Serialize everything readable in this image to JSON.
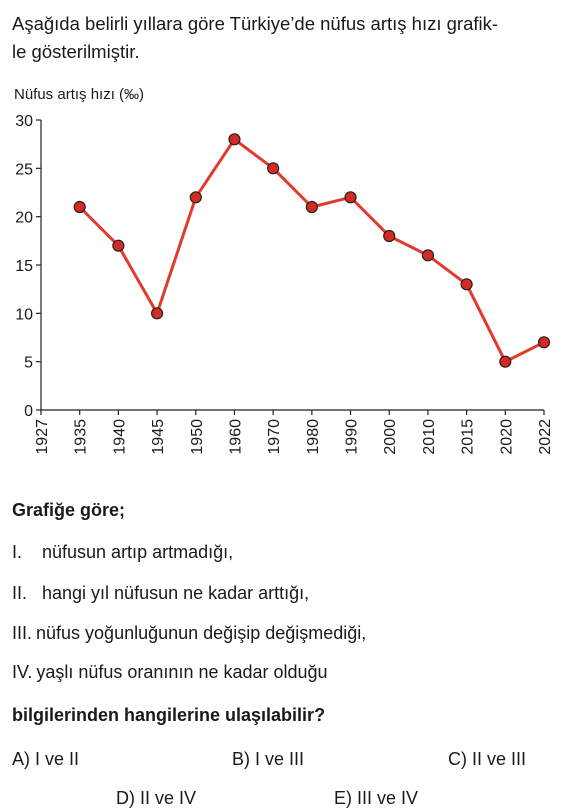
{
  "intro": "Aşağıda belirli yıllara göre Türkiye’de nüfus artış hızı grafik-le gösterilmiştir.",
  "intro_line1": "Aşağıda belirli yıllara göre Türkiye’de nüfus artış hızı grafik-",
  "intro_line2": "le gösterilmiştir.",
  "chart_data": {
    "type": "line",
    "ylabel": "Nüfus artış hızı (‰)",
    "xlabel": "",
    "ylim": [
      0,
      30
    ],
    "yticks": [
      0,
      5,
      10,
      15,
      20,
      25,
      30
    ],
    "xticks": [
      "1927",
      "1935",
      "1940",
      "1945",
      "1950",
      "1960",
      "1970",
      "1980",
      "1990",
      "2000",
      "2010",
      "2015",
      "2020",
      "2022"
    ],
    "x": [
      "1935",
      "1940",
      "1945",
      "1950",
      "1960",
      "1970",
      "1980",
      "1990",
      "2000",
      "2010",
      "2015",
      "2020",
      "2022"
    ],
    "values": [
      21,
      17,
      10,
      22,
      28,
      25,
      21,
      22,
      18,
      16,
      13,
      5,
      7
    ],
    "line_color": "#e2392b",
    "marker_color": "#d42a23",
    "grid": false
  },
  "question": {
    "head": "Grafiğe göre;",
    "items": [
      {
        "num": "I.",
        "text": "nüfusun artıp artmadığı,"
      },
      {
        "num": "II.",
        "text": "hangi yıl nüfusun ne kadar arttığı,"
      },
      {
        "num": "III.",
        "text": "nüfus yoğunluğunun değişip değişmediği,"
      },
      {
        "num": "IV.",
        "text": "yaşlı nüfus oranının ne kadar olduğu"
      }
    ],
    "foot": "bilgilerinden hangilerine ulaşılabilir?"
  },
  "options": {
    "a": "A) I ve II",
    "b": "B) I ve III",
    "c": "C) II ve III",
    "d": "D) II ve IV",
    "e": "E) III ve IV"
  }
}
